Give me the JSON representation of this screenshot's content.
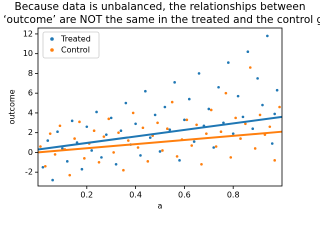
{
  "chart_data": {
    "type": "scatter",
    "title_lines": [
      "Because data is unbalanced, the relationships between",
      "a' and ‘outcome’ are NOT the same in the treated and the control groups"
    ],
    "xlabel": "a",
    "ylabel": "outcome",
    "xlim": [
      0,
      1
    ],
    "ylim": [
      -3.4,
      12.6
    ],
    "xticks": [
      0.2,
      0.4,
      0.6,
      0.8
    ],
    "yticks": [
      -2,
      0,
      2,
      4,
      6,
      8,
      10,
      12
    ],
    "legend": "upper left",
    "series": [
      {
        "name": "Treated",
        "color": "#1f77b4",
        "x": [
          0.02,
          0.04,
          0.06,
          0.08,
          0.1,
          0.12,
          0.14,
          0.16,
          0.18,
          0.2,
          0.22,
          0.24,
          0.26,
          0.28,
          0.3,
          0.32,
          0.34,
          0.36,
          0.38,
          0.4,
          0.42,
          0.44,
          0.46,
          0.48,
          0.5,
          0.52,
          0.54,
          0.56,
          0.58,
          0.6,
          0.62,
          0.64,
          0.66,
          0.68,
          0.7,
          0.72,
          0.74,
          0.76,
          0.78,
          0.8,
          0.82,
          0.84,
          0.86,
          0.88,
          0.9,
          0.92,
          0.94,
          0.96,
          0.98,
          0.97
        ],
        "values": [
          -1.5,
          1.2,
          -2.8,
          2.1,
          0.4,
          -0.9,
          3.2,
          1.0,
          -1.7,
          2.6,
          0.2,
          4.1,
          -0.5,
          1.8,
          3.5,
          -1.2,
          2.2,
          5.0,
          0.8,
          2.9,
          -0.3,
          6.2,
          1.5,
          3.8,
          0.1,
          4.6,
          2.3,
          7.1,
          -0.8,
          3.3,
          5.4,
          1.1,
          8.0,
          2.7,
          4.4,
          0.5,
          6.6,
          3.0,
          9.1,
          1.9,
          5.7,
          3.6,
          10.2,
          2.4,
          7.5,
          4.8,
          11.8,
          0.9,
          6.3,
          3.9
        ],
        "fit_x": [
          0,
          1
        ],
        "fit_values": [
          0.3,
          3.6
        ]
      },
      {
        "name": "Control",
        "color": "#ff7f0e",
        "x": [
          0.01,
          0.03,
          0.05,
          0.07,
          0.09,
          0.11,
          0.13,
          0.15,
          0.17,
          0.19,
          0.21,
          0.23,
          0.25,
          0.27,
          0.29,
          0.31,
          0.33,
          0.35,
          0.37,
          0.39,
          0.41,
          0.43,
          0.45,
          0.47,
          0.49,
          0.51,
          0.53,
          0.55,
          0.57,
          0.59,
          0.61,
          0.63,
          0.65,
          0.67,
          0.69,
          0.71,
          0.73,
          0.75,
          0.77,
          0.79,
          0.81,
          0.83,
          0.85,
          0.87,
          0.89,
          0.91,
          0.93,
          0.95,
          0.97,
          0.99
        ],
        "values": [
          0.6,
          -1.4,
          1.9,
          -0.2,
          2.7,
          0.3,
          -2.3,
          1.4,
          3.1,
          -0.6,
          0.9,
          2.2,
          -1.0,
          1.6,
          3.4,
          0.0,
          2.0,
          -1.8,
          1.2,
          4.0,
          0.5,
          2.5,
          -0.9,
          1.7,
          3.0,
          0.2,
          2.4,
          5.1,
          -0.4,
          1.3,
          3.3,
          0.7,
          2.8,
          -1.2,
          1.9,
          4.3,
          0.6,
          2.1,
          6.0,
          -0.5,
          3.5,
          1.4,
          2.9,
          8.6,
          0.4,
          3.8,
          1.8,
          2.6,
          -0.8,
          4.6
        ],
        "fit_x": [
          0,
          1
        ],
        "fit_values": [
          0.0,
          2.1
        ]
      }
    ]
  }
}
